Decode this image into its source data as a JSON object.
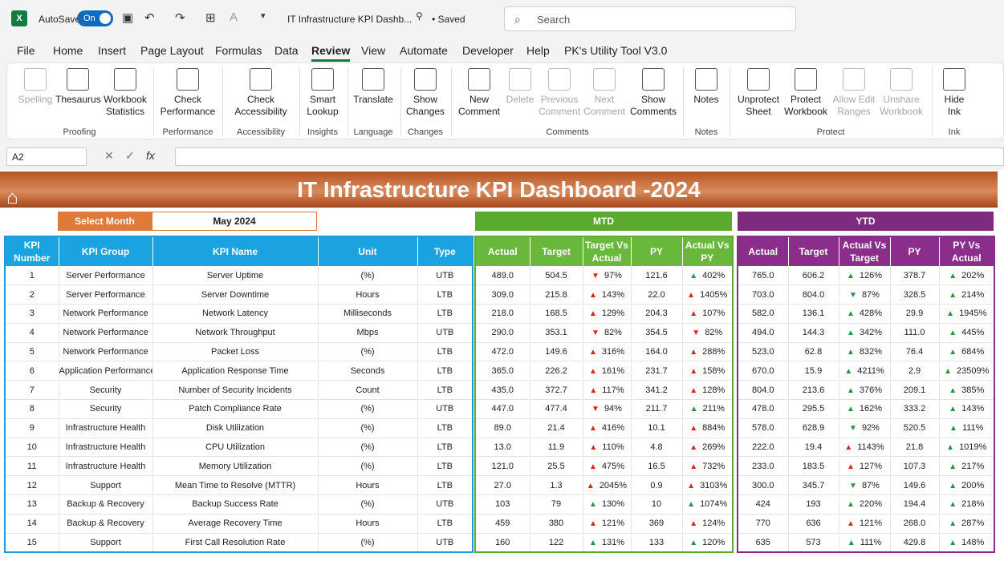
{
  "titlebar": {
    "autosave_label": "AutoSave",
    "toggle_state": "On",
    "doc_title": "IT Infrastructure KPI Dashb...",
    "saved": "• Saved",
    "search_placeholder": "Search"
  },
  "menu": [
    "File",
    "Home",
    "Insert",
    "Page Layout",
    "Formulas",
    "Data",
    "Review",
    "View",
    "Automate",
    "Developer",
    "Help",
    "PK's Utility Tool V3.0"
  ],
  "active_menu": "Review",
  "ribbon": {
    "spelling": "Spelling",
    "thesaurus": "Thesaurus",
    "workbook_stats_1": "Workbook",
    "workbook_stats_2": "Statistics",
    "proofing": "Proofing",
    "check_perf_1": "Check",
    "check_perf_2": "Performance",
    "performance": "Performance",
    "check_acc_1": "Check",
    "check_acc_2": "Accessibility",
    "accessibility": "Accessibility",
    "smart_1": "Smart",
    "smart_2": "Lookup",
    "insights": "Insights",
    "translate": "Translate",
    "language": "Language",
    "show_changes_1": "Show",
    "show_changes_2": "Changes",
    "changes": "Changes",
    "new_comment_1": "New",
    "new_comment_2": "Comment",
    "delete": "Delete",
    "previous_1": "Previous",
    "previous_2": "Comment",
    "next_1": "Next",
    "next_2": "Comment",
    "show_comments_1": "Show",
    "show_comments_2": "Comments",
    "comments": "Comments",
    "notes": "Notes",
    "notes_group": "Notes",
    "unprotect_1": "Unprotect",
    "unprotect_2": "Sheet",
    "protect_1": "Protect",
    "protect_2": "Workbook",
    "allow_1": "Allow Edit",
    "allow_2": "Ranges",
    "unshare_1": "Unshare",
    "unshare_2": "Workbook",
    "protect_group": "Protect",
    "hide_1": "Hide",
    "hide_2": "Ink",
    "ink": "Ink"
  },
  "namebox": "A2",
  "fx": "fx",
  "dashboard": {
    "title": "IT Infrastructure KPI Dashboard -2024",
    "select_month": "Select Month",
    "month": "May 2024",
    "mtd": "MTD",
    "ytd": "YTD"
  },
  "headers": {
    "kpi": [
      "KPI Number",
      "KPI Group",
      "KPI Name",
      "Unit",
      "Type"
    ],
    "mtd": [
      "Actual",
      "Target",
      "Target Vs Actual",
      "PY",
      "Actual Vs PY"
    ],
    "ytd": [
      "Actual",
      "Target",
      "Actual Vs Target",
      "PY",
      "PY Vs Actual"
    ]
  },
  "rows": [
    {
      "n": "1",
      "g": "Server Performance",
      "name": "Server Uptime",
      "u": "(%)",
      "t": "UTB",
      "ma": "489.0",
      "mt": "504.5",
      "mtv": "97%",
      "mtv_d": "dn",
      "mpy": "121.6",
      "mapy": "402%",
      "mapy_d": "up",
      "ya": "765.0",
      "yt": "606.2",
      "yat": "126%",
      "yat_d": "up",
      "ypy": "378.7",
      "ypva": "202%",
      "ypva_d": "up"
    },
    {
      "n": "2",
      "g": "Server Performance",
      "name": "Server Downtime",
      "u": "Hours",
      "t": "LTB",
      "ma": "309.0",
      "mt": "215.8",
      "mtv": "143%",
      "mtv_d": "ar",
      "mpy": "22.0",
      "mapy": "1405%",
      "mapy_d": "ar",
      "ya": "703.0",
      "yt": "804.0",
      "yat": "87%",
      "yat_d": "dnG",
      "ypy": "328.5",
      "ypva": "214%",
      "ypva_d": "up"
    },
    {
      "n": "3",
      "g": "Network Performance",
      "name": "Network Latency",
      "u": "Milliseconds",
      "t": "LTB",
      "ma": "218.0",
      "mt": "168.5",
      "mtv": "129%",
      "mtv_d": "ar",
      "mpy": "204.3",
      "mapy": "107%",
      "mapy_d": "ar",
      "ya": "582.0",
      "yt": "136.1",
      "yat": "428%",
      "yat_d": "up",
      "ypy": "29.9",
      "ypva": "1945%",
      "ypva_d": "up"
    },
    {
      "n": "4",
      "g": "Network Performance",
      "name": "Network Throughput",
      "u": "Mbps",
      "t": "UTB",
      "ma": "290.0",
      "mt": "353.1",
      "mtv": "82%",
      "mtv_d": "dn",
      "mpy": "354.5",
      "mapy": "82%",
      "mapy_d": "dn",
      "ya": "494.0",
      "yt": "144.3",
      "yat": "342%",
      "yat_d": "up",
      "ypy": "111.0",
      "ypva": "445%",
      "ypva_d": "up"
    },
    {
      "n": "5",
      "g": "Network Performance",
      "name": "Packet Loss",
      "u": "(%)",
      "t": "LTB",
      "ma": "472.0",
      "mt": "149.6",
      "mtv": "316%",
      "mtv_d": "ar",
      "mpy": "164.0",
      "mapy": "288%",
      "mapy_d": "ar",
      "ya": "523.0",
      "yt": "62.8",
      "yat": "832%",
      "yat_d": "up",
      "ypy": "76.4",
      "ypva": "684%",
      "ypva_d": "up"
    },
    {
      "n": "6",
      "g": "Application Performance",
      "name": "Application Response Time",
      "u": "Seconds",
      "t": "LTB",
      "ma": "365.0",
      "mt": "226.2",
      "mtv": "161%",
      "mtv_d": "ar",
      "mpy": "231.7",
      "mapy": "158%",
      "mapy_d": "ar",
      "ya": "670.0",
      "yt": "15.9",
      "yat": "4211%",
      "yat_d": "up",
      "ypy": "2.9",
      "ypva": "23509%",
      "ypva_d": "up"
    },
    {
      "n": "7",
      "g": "Security",
      "name": "Number of Security Incidents",
      "u": "Count",
      "t": "LTB",
      "ma": "435.0",
      "mt": "372.7",
      "mtv": "117%",
      "mtv_d": "ar",
      "mpy": "341.2",
      "mapy": "128%",
      "mapy_d": "ar",
      "ya": "804.0",
      "yt": "213.6",
      "yat": "376%",
      "yat_d": "up",
      "ypy": "209.1",
      "ypva": "385%",
      "ypva_d": "up"
    },
    {
      "n": "8",
      "g": "Security",
      "name": "Patch Compliance Rate",
      "u": "(%)",
      "t": "UTB",
      "ma": "447.0",
      "mt": "477.4",
      "mtv": "94%",
      "mtv_d": "dn",
      "mpy": "211.7",
      "mapy": "211%",
      "mapy_d": "up",
      "ya": "478.0",
      "yt": "295.5",
      "yat": "162%",
      "yat_d": "up",
      "ypy": "333.2",
      "ypva": "143%",
      "ypva_d": "up"
    },
    {
      "n": "9",
      "g": "Infrastructure Health",
      "name": "Disk Utilization",
      "u": "(%)",
      "t": "LTB",
      "ma": "89.0",
      "mt": "21.4",
      "mtv": "416%",
      "mtv_d": "ar",
      "mpy": "10.1",
      "mapy": "884%",
      "mapy_d": "ar",
      "ya": "578.0",
      "yt": "628.9",
      "yat": "92%",
      "yat_d": "dnG",
      "ypy": "520.5",
      "ypva": "111%",
      "ypva_d": "up"
    },
    {
      "n": "10",
      "g": "Infrastructure Health",
      "name": "CPU Utilization",
      "u": "(%)",
      "t": "LTB",
      "ma": "13.0",
      "mt": "11.9",
      "mtv": "110%",
      "mtv_d": "ar",
      "mpy": "4.8",
      "mapy": "269%",
      "mapy_d": "ar",
      "ya": "222.0",
      "yt": "19.4",
      "yat": "1143%",
      "yat_d": "ar",
      "ypy": "21.8",
      "ypva": "1019%",
      "ypva_d": "up"
    },
    {
      "n": "11",
      "g": "Infrastructure Health",
      "name": "Memory Utilization",
      "u": "(%)",
      "t": "LTB",
      "ma": "121.0",
      "mt": "25.5",
      "mtv": "475%",
      "mtv_d": "ar",
      "mpy": "16.5",
      "mapy": "732%",
      "mapy_d": "ar",
      "ya": "233.0",
      "yt": "183.5",
      "yat": "127%",
      "yat_d": "ar",
      "ypy": "107.3",
      "ypva": "217%",
      "ypva_d": "up"
    },
    {
      "n": "12",
      "g": "Support",
      "name": "Mean Time to Resolve (MTTR)",
      "u": "Hours",
      "t": "LTB",
      "ma": "27.0",
      "mt": "1.3",
      "mtv": "2045%",
      "mtv_d": "ar",
      "mpy": "0.9",
      "mapy": "3103%",
      "mapy_d": "ar",
      "ya": "300.0",
      "yt": "345.7",
      "yat": "87%",
      "yat_d": "dnG",
      "ypy": "149.6",
      "ypva": "200%",
      "ypva_d": "up"
    },
    {
      "n": "13",
      "g": "Backup & Recovery",
      "name": "Backup Success Rate",
      "u": "(%)",
      "t": "UTB",
      "ma": "103",
      "mt": "79",
      "mtv": "130%",
      "mtv_d": "up",
      "mpy": "10",
      "mapy": "1074%",
      "mapy_d": "up",
      "ya": "424",
      "yt": "193",
      "yat": "220%",
      "yat_d": "up",
      "ypy": "194.4",
      "ypva": "218%",
      "ypva_d": "up"
    },
    {
      "n": "14",
      "g": "Backup & Recovery",
      "name": "Average Recovery Time",
      "u": "Hours",
      "t": "LTB",
      "ma": "459",
      "mt": "380",
      "mtv": "121%",
      "mtv_d": "ar",
      "mpy": "369",
      "mapy": "124%",
      "mapy_d": "ar",
      "ya": "770",
      "yt": "636",
      "yat": "121%",
      "yat_d": "ar",
      "ypy": "268.0",
      "ypva": "287%",
      "ypva_d": "up"
    },
    {
      "n": "15",
      "g": "Support",
      "name": "First Call Resolution Rate",
      "u": "(%)",
      "t": "UTB",
      "ma": "160",
      "mt": "122",
      "mtv": "131%",
      "mtv_d": "up",
      "mpy": "133",
      "mapy": "120%",
      "mapy_d": "up",
      "ya": "635",
      "yt": "573",
      "yat": "111%",
      "yat_d": "up",
      "ypy": "429.8",
      "ypva": "148%",
      "ypva_d": "up"
    }
  ]
}
